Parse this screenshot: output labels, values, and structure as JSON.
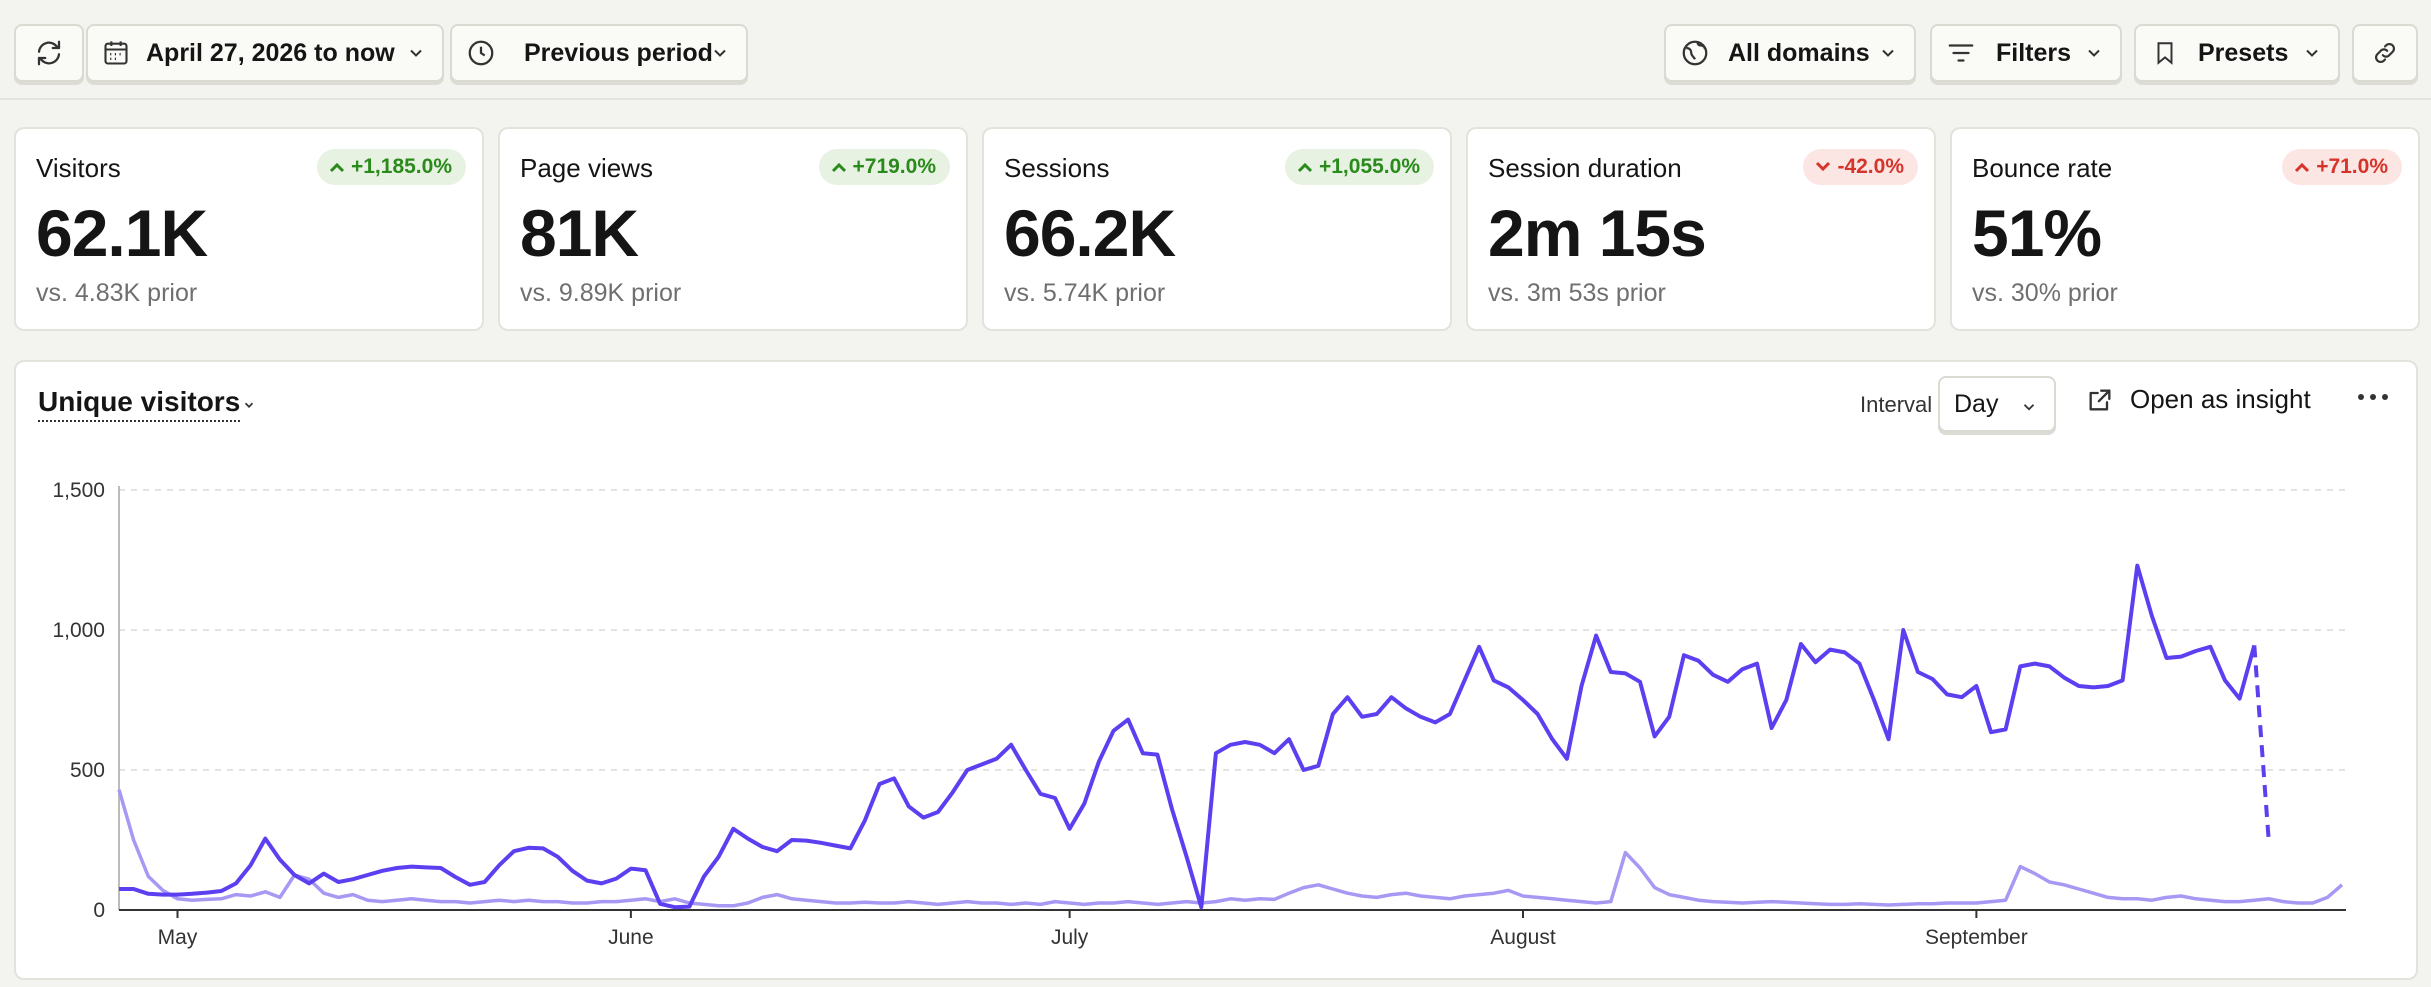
{
  "toolbar": {
    "date_range": "April 27, 2026 to now",
    "compare": "Previous period",
    "domains": "All domains",
    "filters": "Filters",
    "presets": "Presets",
    "icons": [
      "refresh-icon",
      "calendar-icon",
      "clock-icon",
      "globe-icon",
      "filter-icon",
      "bookmark-icon",
      "link-icon"
    ]
  },
  "stats": [
    {
      "title": "Visitors",
      "value": "62.1K",
      "change": "+1,185.0%",
      "direction": "up",
      "prior": "vs. 4.83K prior"
    },
    {
      "title": "Page views",
      "value": "81K",
      "change": "+719.0%",
      "direction": "up",
      "prior": "vs. 9.89K prior"
    },
    {
      "title": "Sessions",
      "value": "66.2K",
      "change": "+1,055.0%",
      "direction": "up",
      "prior": "vs. 5.74K prior"
    },
    {
      "title": "Session duration",
      "value": "2m 15s",
      "change": "-42.0%",
      "direction": "down",
      "prior": "vs. 3m 53s prior"
    },
    {
      "title": "Bounce rate",
      "value": "51%",
      "change": "+71.0%",
      "direction": "down",
      "prior": "vs. 30% prior"
    }
  ],
  "colors": {
    "positive": "#2a8a1c",
    "negative": "#d6342b",
    "current_series": "#5b3ff0",
    "previous_series": "#a898f4"
  },
  "chart_panel": {
    "title": "Unique visitors",
    "interval_label": "Interval",
    "interval_value": "Day",
    "open_insight": "Open as insight",
    "more_icon": "ellipsis-icon"
  },
  "chart_data": {
    "type": "line",
    "x_start": "2026-04-27",
    "x_tick_labels": [
      "May",
      "June",
      "July",
      "August",
      "September"
    ],
    "y_ticks": [
      "0",
      "500",
      "1,000",
      "1,500"
    ],
    "ylim": [
      0,
      1500
    ],
    "grid": true,
    "series": [
      {
        "values": [
          75,
          75,
          58,
          55,
          55,
          58,
          62,
          68,
          95,
          160,
          255,
          180,
          125,
          95,
          130,
          100,
          110,
          125,
          140,
          150,
          155,
          152,
          150,
          118,
          90,
          100,
          160,
          210,
          222,
          220,
          190,
          140,
          105,
          95,
          112,
          148,
          142,
          22,
          10,
          12,
          120,
          190,
          290,
          255,
          225,
          210,
          250,
          248,
          240,
          230,
          220,
          320,
          450,
          470,
          370,
          330,
          350,
          420,
          500,
          520,
          540,
          590,
          500,
          415,
          400,
          290,
          380,
          530,
          640,
          680,
          560,
          555,
          360,
          190,
          10,
          560,
          590,
          600,
          590,
          560,
          610,
          500,
          515,
          700,
          760,
          690,
          700,
          760,
          720,
          690,
          670,
          700,
          820,
          940,
          820,
          795,
          750,
          700,
          610,
          540,
          800,
          980,
          850,
          845,
          815,
          620,
          690,
          910,
          890,
          840,
          815,
          860,
          880,
          650,
          750,
          950,
          885,
          930,
          920,
          880,
          750,
          610,
          1000,
          850,
          825,
          770,
          760,
          800,
          635,
          645,
          870,
          880,
          870,
          830,
          800,
          795,
          800,
          820,
          1230,
          1050,
          900,
          905,
          925,
          940,
          820,
          755,
          945,
          240
        ],
        "dashed_last_segment": true
      },
      {
        "values": [
          430,
          250,
          120,
          70,
          40,
          35,
          38,
          40,
          55,
          50,
          65,
          45,
          125,
          110,
          60,
          45,
          55,
          35,
          30,
          35,
          40,
          35,
          30,
          30,
          25,
          30,
          35,
          30,
          35,
          30,
          30,
          25,
          25,
          30,
          30,
          35,
          40,
          30,
          40,
          25,
          20,
          15,
          15,
          25,
          45,
          55,
          40,
          35,
          30,
          25,
          25,
          28,
          25,
          25,
          30,
          25,
          20,
          25,
          30,
          25,
          25,
          20,
          25,
          20,
          30,
          25,
          20,
          25,
          25,
          30,
          25,
          20,
          25,
          30,
          25,
          30,
          40,
          35,
          40,
          38,
          60,
          80,
          90,
          75,
          60,
          50,
          45,
          55,
          60,
          50,
          45,
          40,
          50,
          55,
          60,
          70,
          50,
          45,
          40,
          35,
          30,
          25,
          30,
          205,
          150,
          80,
          55,
          45,
          35,
          30,
          28,
          25,
          28,
          30,
          28,
          25,
          22,
          20,
          20,
          22,
          20,
          18,
          20,
          22,
          22,
          25,
          25,
          25,
          30,
          35,
          155,
          130,
          100,
          90,
          75,
          60,
          45,
          40,
          40,
          35,
          45,
          50,
          40,
          35,
          30,
          30,
          35,
          40,
          30,
          25,
          25,
          45,
          90
        ]
      }
    ]
  }
}
